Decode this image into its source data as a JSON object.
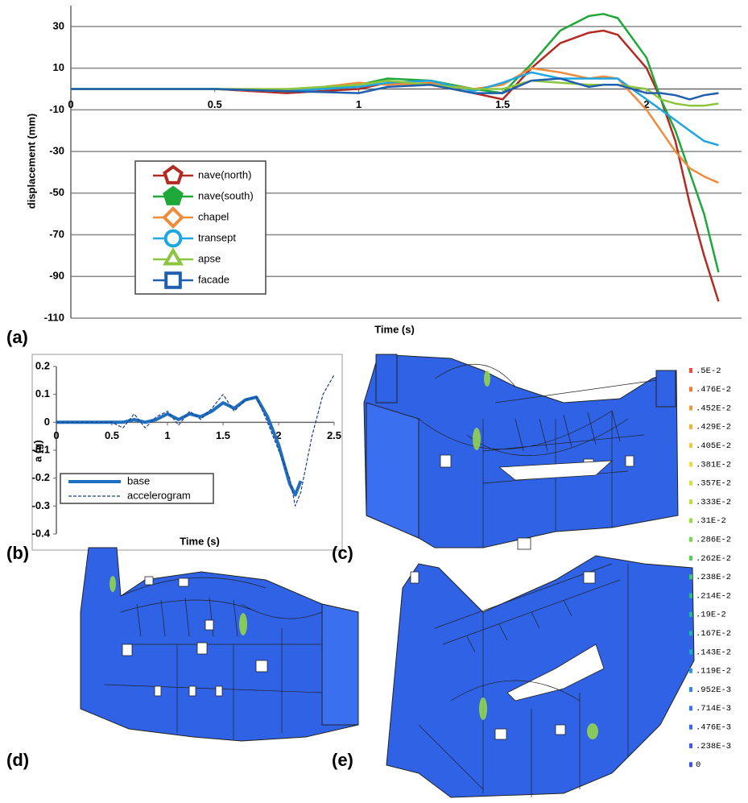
{
  "chart_data": [
    {
      "type": "line",
      "ylabel": "displacement (mm)",
      "xlabel": "Time (s)",
      "xlim": [
        0,
        2.33
      ],
      "ylim": [
        -110,
        40
      ],
      "xticks": [
        0,
        0.5,
        1,
        1.5,
        2
      ],
      "yticks": [
        30,
        10,
        -10,
        -30,
        -50,
        -70,
        -90,
        -110
      ],
      "grid": true,
      "x": [
        0,
        0.25,
        0.5,
        0.75,
        1,
        1.1,
        1.25,
        1.4,
        1.5,
        1.6,
        1.7,
        1.8,
        1.85,
        1.9,
        2,
        2.05,
        2.1,
        2.15,
        2.2,
        2.25
      ],
      "series": [
        {
          "name": "nave(north)",
          "color": "#b22a22",
          "marker": "pentagon",
          "values": [
            0,
            0,
            0,
            -2,
            0,
            3,
            2,
            -2,
            -5,
            10,
            22,
            27,
            28,
            26,
            10,
            -5,
            -25,
            -55,
            -80,
            -102
          ]
        },
        {
          "name": "nave(south)",
          "color": "#1fa83a",
          "marker": "pentagon-filled",
          "values": [
            0,
            0,
            0,
            -1,
            2,
            5,
            4,
            0,
            -2,
            12,
            28,
            35,
            36,
            34,
            15,
            -5,
            -20,
            -40,
            -60,
            -88
          ]
        },
        {
          "name": "chapel",
          "color": "#f08a3c",
          "marker": "diamond",
          "values": [
            0,
            0,
            0,
            -1,
            3,
            2,
            3,
            0,
            2,
            10,
            8,
            5,
            6,
            5,
            -10,
            -20,
            -30,
            -38,
            -42,
            -45
          ]
        },
        {
          "name": "transept",
          "color": "#1ea6e0",
          "marker": "circle",
          "values": [
            0,
            0,
            0,
            -1,
            1,
            3,
            4,
            -1,
            3,
            8,
            5,
            5,
            5,
            5,
            -5,
            -10,
            -15,
            -20,
            -25,
            -27
          ]
        },
        {
          "name": "apse",
          "color": "#8cc63e",
          "marker": "triangle",
          "values": [
            0,
            0,
            0,
            0,
            2,
            4,
            2,
            0,
            0,
            4,
            3,
            2,
            2,
            2,
            0,
            -5,
            -7,
            -8,
            -8,
            -7
          ]
        },
        {
          "name": "facade",
          "color": "#1f5fae",
          "marker": "square",
          "values": [
            0,
            0,
            0,
            -1,
            -2,
            1,
            2,
            -2,
            -2,
            4,
            5,
            1,
            2,
            2,
            -2,
            -2,
            -3,
            -5,
            -3,
            -2
          ]
        }
      ]
    },
    {
      "type": "line",
      "ylabel": "a (g)",
      "xlabel": "Time (s)",
      "xlim": [
        0,
        2.5
      ],
      "ylim": [
        -0.4,
        0.2
      ],
      "xticks": [
        0,
        0.5,
        1,
        1.5,
        2,
        2.5
      ],
      "yticks": [
        0.2,
        0.1,
        0,
        -0.1,
        -0.2,
        -0.3,
        -0.4
      ],
      "grid": false,
      "x": [
        0,
        0.25,
        0.5,
        0.6,
        0.7,
        0.8,
        0.9,
        1,
        1.1,
        1.2,
        1.3,
        1.4,
        1.5,
        1.6,
        1.7,
        1.8,
        1.9,
        2,
        2.1,
        2.15,
        2.2,
        2.3,
        2.4,
        2.5
      ],
      "series": [
        {
          "name": "base",
          "color": "#1f6fc0",
          "dash": false,
          "values": [
            0,
            0,
            0,
            0,
            0.01,
            0,
            0.01,
            0.03,
            0.01,
            0.03,
            0.02,
            0.04,
            0.07,
            0.05,
            0.08,
            0.09,
            0.02,
            -0.08,
            -0.22,
            -0.26,
            -0.21,
            null,
            null,
            null
          ]
        },
        {
          "name": "accelerogram",
          "color": "#1f3f8a",
          "dash": true,
          "values": [
            0,
            0,
            0,
            -0.02,
            0.03,
            -0.02,
            0.02,
            0.04,
            -0.01,
            0.04,
            0.01,
            0.05,
            0.1,
            0.04,
            0.08,
            0.09,
            0,
            -0.1,
            -0.2,
            -0.3,
            -0.25,
            -0.05,
            0.1,
            0.17
          ]
        }
      ]
    }
  ],
  "figure": {
    "panel_labels": [
      "(a)",
      "(b)",
      "(c)",
      "(d)",
      "(e)"
    ],
    "colorbar": {
      "labels": [
        ".5E-2",
        ".476E-2",
        ".452E-2",
        ".429E-2",
        ".405E-2",
        ".381E-2",
        ".357E-2",
        ".333E-2",
        ".31E-2",
        ".286E-2",
        ".262E-2",
        ".238E-2",
        ".214E-2",
        ".19E-2",
        ".167E-2",
        ".143E-2",
        ".119E-2",
        ".952E-3",
        ".714E-3",
        ".476E-3",
        ".238E-3",
        "0"
      ],
      "colors": [
        "#e8503a",
        "#ee7a36",
        "#f19a38",
        "#f3b23a",
        "#f2c93d",
        "#e8dc3f",
        "#d4e23f",
        "#b8e240",
        "#98df44",
        "#76d84c",
        "#56d05a",
        "#3cc86c",
        "#2cc182",
        "#22ba9a",
        "#1fb3b3",
        "#22a8c8",
        "#289ad8",
        "#2f8ae2",
        "#3579e6",
        "#3a69e8",
        "#3e5ae8",
        "#4350e6"
      ]
    }
  }
}
